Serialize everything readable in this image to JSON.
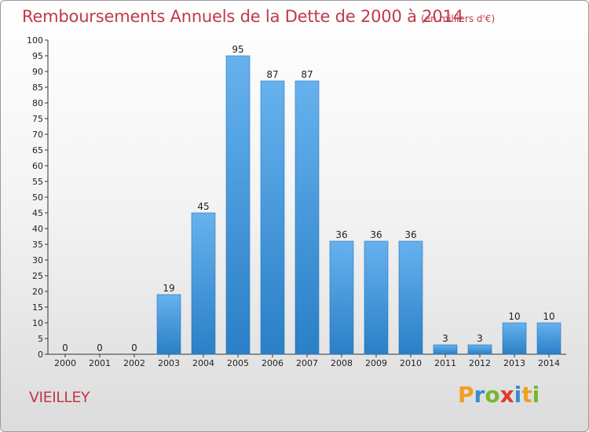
{
  "header": {
    "title": "Remboursements Annuels de la Dette de 2000 à 2014",
    "unit": "(en milliers d'€)"
  },
  "footer": {
    "town": "VIEILLEY",
    "brand": "Proxiti"
  },
  "colors": {
    "title": "#c0394b",
    "bar_top": "#66b2ee",
    "bar_bottom": "#2a7fc6"
  },
  "chart_data": {
    "type": "bar",
    "title": "Remboursements Annuels de la Dette de 2000 à 2014",
    "subtitle": "(en milliers d'€)",
    "xlabel": "",
    "ylabel": "",
    "categories": [
      "2000",
      "2001",
      "2002",
      "2003",
      "2004",
      "2005",
      "2006",
      "2007",
      "2008",
      "2009",
      "2010",
      "2011",
      "2012",
      "2013",
      "2014"
    ],
    "values": [
      0,
      0,
      0,
      19,
      45,
      95,
      87,
      87,
      36,
      36,
      36,
      3,
      3,
      10,
      10
    ],
    "ylim": [
      0,
      100
    ],
    "yticks": [
      0,
      5,
      10,
      15,
      20,
      25,
      30,
      35,
      40,
      45,
      50,
      55,
      60,
      65,
      70,
      75,
      80,
      85,
      90,
      95,
      100
    ],
    "grid": false,
    "legend": "none"
  }
}
